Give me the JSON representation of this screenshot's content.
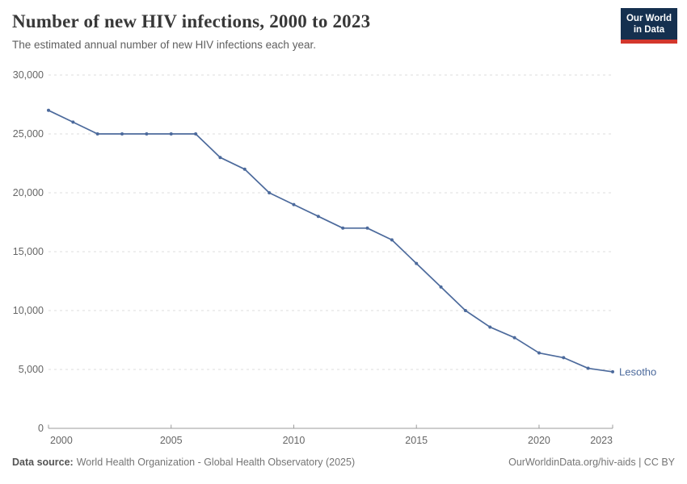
{
  "header": {
    "title": "Number of new HIV infections, 2000 to 2023",
    "subtitle": "The estimated annual number of new HIV infections each year.",
    "logo": {
      "line1": "Our World",
      "line2": "in Data"
    }
  },
  "chart_data": {
    "type": "line",
    "title": "Number of new HIV infections, 2000 to 2023",
    "x": [
      2000,
      2001,
      2002,
      2003,
      2004,
      2005,
      2006,
      2007,
      2008,
      2009,
      2010,
      2011,
      2012,
      2013,
      2014,
      2015,
      2016,
      2017,
      2018,
      2019,
      2020,
      2021,
      2022,
      2023
    ],
    "series": [
      {
        "name": "Lesotho",
        "color": "#4C6A9C",
        "values": [
          27000,
          26000,
          25000,
          25000,
          25000,
          25000,
          25000,
          23000,
          22000,
          20000,
          19000,
          18000,
          17000,
          17000,
          16000,
          14000,
          12000,
          10000,
          8600,
          7700,
          6400,
          6000,
          5100,
          4800
        ]
      }
    ],
    "xlabel": "",
    "ylabel": "",
    "xlim": [
      2000,
      2023
    ],
    "ylim": [
      0,
      30000
    ],
    "yticks": [
      0,
      5000,
      10000,
      15000,
      20000,
      25000,
      30000
    ],
    "ytick_labels": [
      "0",
      "5,000",
      "10,000",
      "15,000",
      "20,000",
      "25,000",
      "30,000"
    ],
    "xticks": [
      2000,
      2005,
      2010,
      2015,
      2020,
      2023
    ],
    "xtick_labels": [
      "2000",
      "2005",
      "2010",
      "2015",
      "2020",
      "2023"
    ],
    "grid": "horizontal-dashed",
    "legend": "label-at-line-end"
  },
  "colors": {
    "line": "#4C6A9C",
    "entity_label": "#4C6A9C",
    "grid": "#DCDCDC",
    "axis": "#9B9B9B",
    "tick_text": "#666666"
  },
  "footer": {
    "data_source_label": "Data source:",
    "data_source_text": "World Health Organization - Global Health Observatory (2025)",
    "credit": "OurWorldinData.org/hiv-aids | CC BY"
  }
}
